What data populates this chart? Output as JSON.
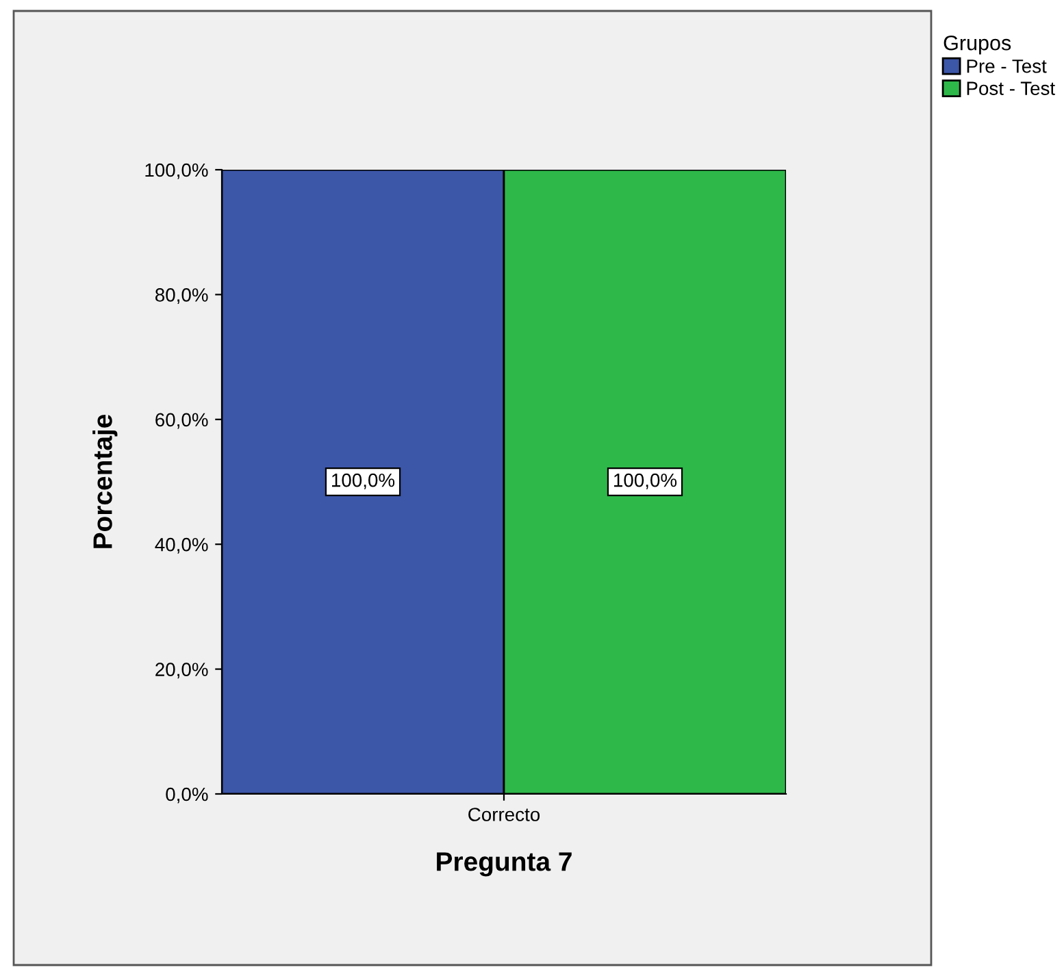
{
  "chart_data": {
    "type": "bar",
    "xlabel": "Pregunta 7",
    "ylabel": "Porcentaje",
    "legend_title": "Grupos",
    "categories": [
      "Correcto"
    ],
    "series": [
      {
        "name": "Pre - Test",
        "color": "#3c56a8",
        "values": [
          100
        ],
        "value_labels": [
          "100,0%"
        ]
      },
      {
        "name": "Post - Test",
        "color": "#2eb84a",
        "values": [
          100
        ],
        "value_labels": [
          "100,0%"
        ]
      }
    ],
    "ylim": [
      0,
      100
    ],
    "yticks": [
      {
        "value": 0,
        "label": "0,0%"
      },
      {
        "value": 20,
        "label": "20,0%"
      },
      {
        "value": 40,
        "label": "40,0%"
      },
      {
        "value": 60,
        "label": "60,0%"
      },
      {
        "value": 80,
        "label": "80,0%"
      },
      {
        "value": 100,
        "label": "100,0%"
      }
    ],
    "grid": false,
    "legend": "top right"
  }
}
